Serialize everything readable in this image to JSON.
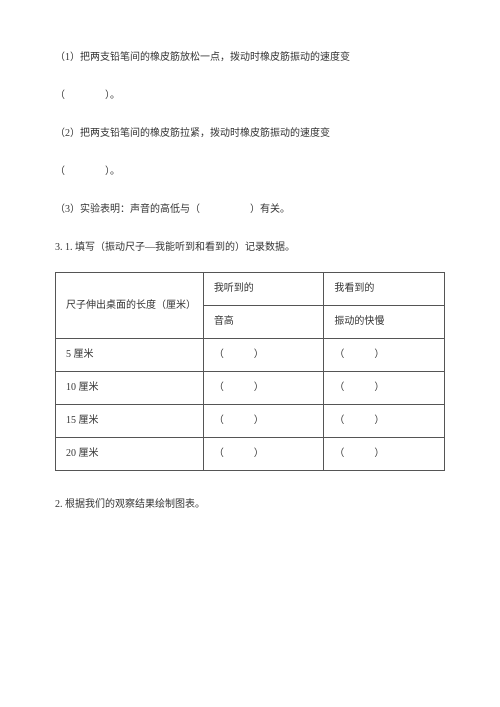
{
  "questions": {
    "q1": {
      "text": "（1）把两支铅笔间的橡皮筋放松一点，拨动时橡皮筋振动的速度变",
      "blank": "（　　　　）。"
    },
    "q2": {
      "text": "（2）把两支铅笔间的橡皮筋拉紧，拨动时橡皮筋振动的速度变",
      "blank": "（　　　　）。"
    },
    "q3": {
      "prefix": "（3）实验表明：声音的高低与（",
      "suffix": "）有关。"
    }
  },
  "section3": {
    "heading": "3. 1. 填写（振动尺子—我能听到和看到的）记录数据。",
    "table": {
      "row_header": "尺子伸出桌面的长度（厘米）",
      "col_heard": "我听到的",
      "col_seen": "我看到的",
      "sub_heard": "音高",
      "sub_seen": "振动的快慢",
      "rows": [
        {
          "len": "5 厘米",
          "a": "（　　　）",
          "b": "（　　　）"
        },
        {
          "len": "10 厘米",
          "a": "（　　　）",
          "b": "（　　　）"
        },
        {
          "len": "15 厘米",
          "a": "（　　　）",
          "b": "（　　　）"
        },
        {
          "len": "20 厘米",
          "a": "（　　　）",
          "b": "（　　　）"
        }
      ]
    },
    "footer": "2. 根据我们的观察结果绘制图表。"
  }
}
